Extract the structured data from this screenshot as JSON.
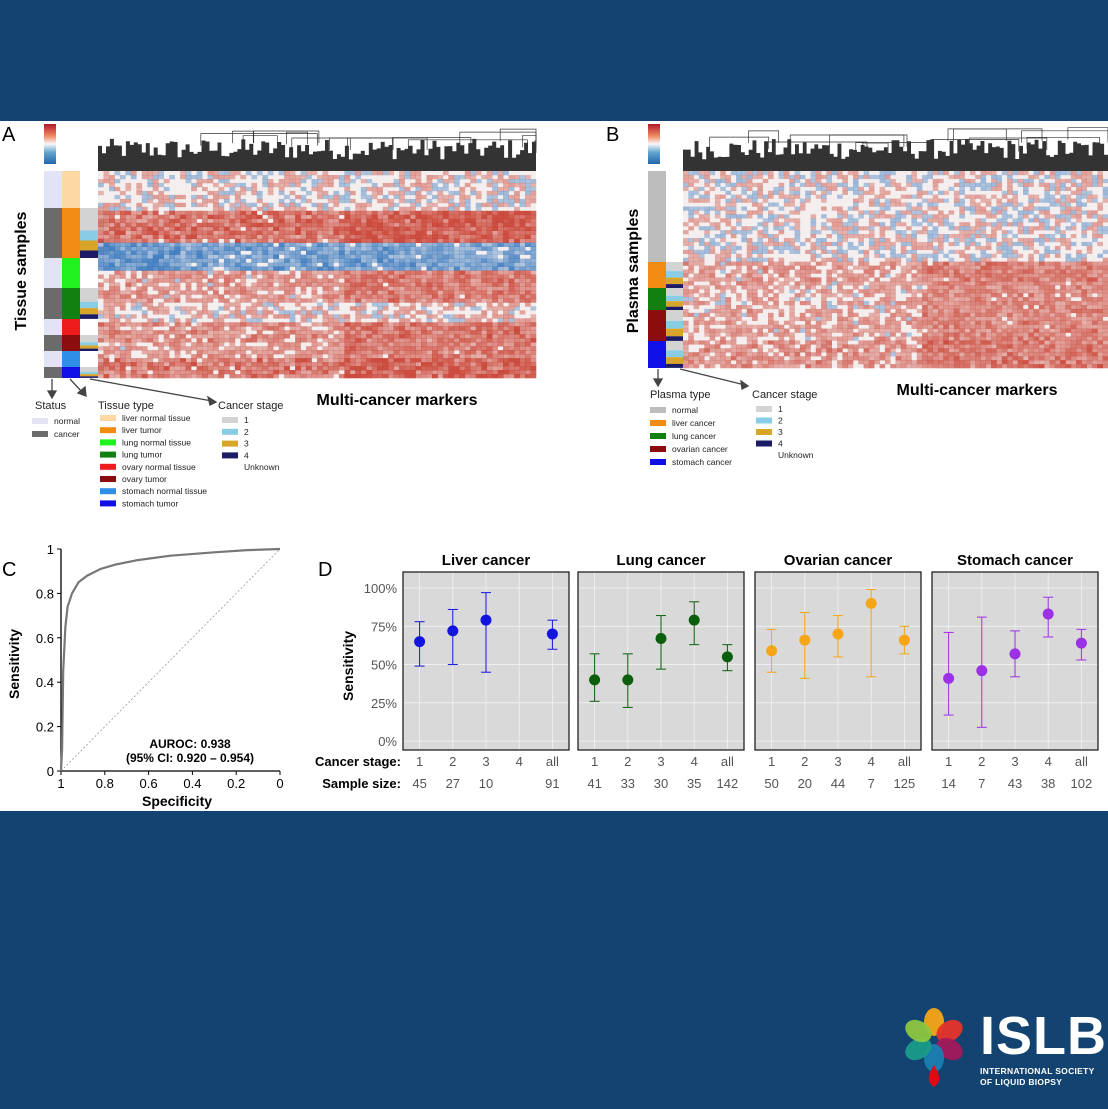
{
  "panels": {
    "a": {
      "letter": "A",
      "ylabel": "Tissue samples",
      "xlabel": "Multi-cancer markers",
      "legend_titles": {
        "status": "Status",
        "tissue": "Tissue type",
        "stage": "Cancer stage"
      },
      "status_items": [
        {
          "label": "normal",
          "color": "#e2e3f4"
        },
        {
          "label": "cancer",
          "color": "#6b6b6b"
        }
      ],
      "tissue_items": [
        {
          "label": "liver normal tissue",
          "color": "#fcd9a2"
        },
        {
          "label": "liver tumor",
          "color": "#f28c12"
        },
        {
          "label": "lung normal tissue",
          "color": "#1ff21f"
        },
        {
          "label": "lung tumor",
          "color": "#118011"
        },
        {
          "label": "ovary normal tissue",
          "color": "#ee1c1c"
        },
        {
          "label": "ovary tumor",
          "color": "#8b0d0d"
        },
        {
          "label": "stomach normal tissue",
          "color": "#2f8fe8"
        },
        {
          "label": "stomach tumor",
          "color": "#1010e6"
        }
      ],
      "stage_items": [
        {
          "label": "1",
          "color": "#d3d3d3"
        },
        {
          "label": "2",
          "color": "#88cce6"
        },
        {
          "label": "3",
          "color": "#d9a528"
        },
        {
          "label": "4",
          "color": "#1c1c66"
        },
        {
          "label": "Unknown",
          "color": ""
        }
      ]
    },
    "b": {
      "letter": "B",
      "ylabel": "Plasma samples",
      "xlabel": "Multi-cancer markers",
      "legend_titles": {
        "plasma": "Plasma type",
        "stage": "Cancer stage"
      },
      "plasma_items": [
        {
          "label": "normal",
          "color": "#bdbdbd"
        },
        {
          "label": "liver cancer",
          "color": "#f28c12"
        },
        {
          "label": "lung cancer",
          "color": "#118011"
        },
        {
          "label": "ovarian cancer",
          "color": "#8b0d0d"
        },
        {
          "label": "stomach cancer",
          "color": "#1010e6"
        }
      ],
      "stage_items": [
        {
          "label": "1",
          "color": "#d3d3d3"
        },
        {
          "label": "2",
          "color": "#88cce6"
        },
        {
          "label": "3",
          "color": "#d9a528"
        },
        {
          "label": "4",
          "color": "#1c1c66"
        },
        {
          "label": "Unknown",
          "color": ""
        }
      ]
    },
    "c": {
      "letter": "C",
      "ylabel": "Sensitivity",
      "xlabel": "Specificity",
      "annotation_line1": "AUROC: 0.938",
      "annotation_line2": "(95% CI: 0.920 – 0.954)"
    },
    "d": {
      "letter": "D",
      "ylabel": "Sensitivity",
      "row_label_stage": "Cancer stage:",
      "row_label_size": "Sample size:"
    }
  },
  "chart_data": [
    {
      "type": "line",
      "panel": "C",
      "xlabel": "Specificity",
      "ylabel": "Sensitivity",
      "xlim": [
        1,
        0
      ],
      "ylim": [
        0,
        1
      ],
      "x_ticks": [
        "1",
        "0.8",
        "0.6",
        "0.4",
        "0.2",
        "0"
      ],
      "y_ticks": [
        "0",
        "0.2",
        "0.4",
        "0.6",
        "0.8",
        "1"
      ],
      "roc_fpr": [
        0,
        0.005,
        0.01,
        0.02,
        0.03,
        0.05,
        0.08,
        0.12,
        0.18,
        0.25,
        0.35,
        0.5,
        0.7,
        0.85,
        1
      ],
      "roc_tpr": [
        0,
        0.1,
        0.45,
        0.65,
        0.74,
        0.8,
        0.85,
        0.88,
        0.91,
        0.93,
        0.95,
        0.97,
        0.985,
        0.995,
        1
      ],
      "auroc": 0.938
    },
    {
      "type": "scatter",
      "panel": "D",
      "ylabel": "Sensitivity",
      "ylim": [
        0,
        1
      ],
      "y_ticks": [
        "0%",
        "25%",
        "50%",
        "75%",
        "100%"
      ],
      "categories": [
        "1",
        "2",
        "3",
        "4",
        "all"
      ],
      "series": [
        {
          "name": "Liver cancer",
          "color": "#1414e0",
          "values": [
            0.65,
            0.72,
            0.79,
            null,
            0.7
          ],
          "lower": [
            0.49,
            0.5,
            0.45,
            null,
            0.6
          ],
          "upper": [
            0.78,
            0.86,
            0.97,
            null,
            0.79
          ],
          "sample_size": [
            "45",
            "27",
            "10",
            "",
            "91"
          ]
        },
        {
          "name": "Lung cancer",
          "color": "#0b5e0b",
          "values": [
            0.4,
            0.4,
            0.67,
            0.79,
            0.55
          ],
          "lower": [
            0.26,
            0.22,
            0.47,
            0.63,
            0.46
          ],
          "upper": [
            0.57,
            0.57,
            0.82,
            0.91,
            0.63
          ],
          "sample_size": [
            "41",
            "33",
            "30",
            "35",
            "142"
          ]
        },
        {
          "name": "Ovarian cancer",
          "color": "#f5a516",
          "values": [
            0.59,
            0.66,
            0.7,
            0.9,
            0.66
          ],
          "lower": [
            0.45,
            0.41,
            0.55,
            0.42,
            0.57
          ],
          "upper": [
            0.73,
            0.84,
            0.82,
            0.99,
            0.75
          ],
          "sample_size": [
            "50",
            "20",
            "44",
            "7",
            "125"
          ]
        },
        {
          "name": "Stomach cancer",
          "color": "#9b30e6",
          "values": [
            0.41,
            0.46,
            0.57,
            0.83,
            0.64
          ],
          "lower": [
            0.17,
            0.09,
            0.42,
            0.68,
            0.53
          ],
          "upper": [
            0.71,
            0.81,
            0.72,
            0.94,
            0.73
          ],
          "sample_size": [
            "14",
            "7",
            "43",
            "38",
            "102"
          ]
        }
      ]
    }
  ],
  "logo": {
    "word": "ISLB",
    "line1": "INTERNATIONAL SOCIETY",
    "line2": "OF LIQUID BIOPSY",
    "petal_colors": [
      "#f5a516",
      "#e6332a",
      "#a3195b",
      "#1a7fb0",
      "#1a9b8a",
      "#8cc63f"
    ],
    "drop_color": "#e30613"
  }
}
